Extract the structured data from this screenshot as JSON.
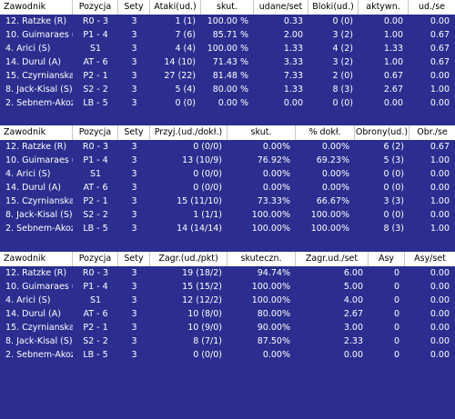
{
  "tables": [
    {
      "headers": [
        "Zawodnik",
        "Pozycja",
        "Sety",
        "Ataki(ud.)",
        "skut.",
        "udane/set",
        "Bloki(ud.)",
        "aktywn.",
        "ud./se"
      ],
      "rows": [
        [
          "12. Ratzke (R)",
          "R0 - 3",
          "3",
          "1 (1)",
          "100.00 %",
          "0.33",
          "0 (0)",
          "0.00",
          "0.00"
        ],
        [
          "10. Guimaraes (P)",
          "P1 - 4",
          "3",
          "7 (6)",
          "85.71 %",
          "2.00",
          "3 (2)",
          "1.00",
          "0.67"
        ],
        [
          "4. Arici (S)",
          "S1",
          "3",
          "4 (4)",
          "100.00 %",
          "1.33",
          "4 (2)",
          "1.33",
          "0.67"
        ],
        [
          "14. Durul (A)",
          "AT - 6",
          "3",
          "14 (10)",
          "71.43 %",
          "3.33",
          "3 (2)",
          "1.00",
          "0.67"
        ],
        [
          "15. Czyrnianska (P)",
          "P2 - 1",
          "3",
          "27 (22)",
          "81.48 %",
          "7.33",
          "2 (0)",
          "0.67",
          "0.00"
        ],
        [
          "8. Jack-Kisal (S)",
          "S2 - 2",
          "3",
          "5 (4)",
          "80.00 %",
          "1.33",
          "8 (3)",
          "2.67",
          "1.00"
        ],
        [
          "2. Sebnem-Akoz (L)",
          "LB - 5",
          "3",
          "0 (0)",
          "0.00 %",
          "0.00",
          "0 (0)",
          "0.00",
          "0.00"
        ]
      ]
    },
    {
      "headers": [
        "Zawodnik",
        "Pozycja",
        "Sety",
        "Przyj.(ud./dokł.)",
        "skut.",
        "% dokł.",
        "Obrony(ud.)",
        "Obr./se"
      ],
      "rows": [
        [
          "12. Ratzke (R)",
          "R0 - 3",
          "3",
          "0 (0/0)",
          "0.00%",
          "0.00%",
          "6 (2)",
          "0.67"
        ],
        [
          "10. Guimaraes (P)",
          "P1 - 4",
          "3",
          "13 (10/9)",
          "76.92%",
          "69.23%",
          "5 (3)",
          "1.00"
        ],
        [
          "4. Arici (S)",
          "S1",
          "3",
          "0 (0/0)",
          "0.00%",
          "0.00%",
          "0 (0)",
          "0.00"
        ],
        [
          "14. Durul (A)",
          "AT - 6",
          "3",
          "0 (0/0)",
          "0.00%",
          "0.00%",
          "0 (0)",
          "0.00"
        ],
        [
          "15. Czyrnianska (P)",
          "P2 - 1",
          "3",
          "15 (11/10)",
          "73.33%",
          "66.67%",
          "3 (3)",
          "1.00"
        ],
        [
          "8. Jack-Kisal (S)",
          "S2 - 2",
          "3",
          "1 (1/1)",
          "100.00%",
          "100.00%",
          "0 (0)",
          "0.00"
        ],
        [
          "2. Sebnem-Akoz (L)",
          "LB - 5",
          "3",
          "14 (14/14)",
          "100.00%",
          "100.00%",
          "8 (3)",
          "1.00"
        ]
      ]
    },
    {
      "headers": [
        "Zawodnik",
        "Pozycja",
        "Sety",
        "Zagr.(ud./pkt)",
        "skuteczn.",
        "Zagr.ud./set",
        "Asy",
        "Asy/set"
      ],
      "rows": [
        [
          "12. Ratzke (R)",
          "R0 - 3",
          "3",
          "19 (18/2)",
          "94.74%",
          "6.00",
          "0",
          "0.00"
        ],
        [
          "10. Guimaraes (P)",
          "P1 - 4",
          "3",
          "15 (15/2)",
          "100.00%",
          "5.00",
          "0",
          "0.00"
        ],
        [
          "4. Arici (S)",
          "S1",
          "3",
          "12 (12/2)",
          "100.00%",
          "4.00",
          "0",
          "0.00"
        ],
        [
          "14. Durul (A)",
          "AT - 6",
          "3",
          "10 (8/0)",
          "80.00%",
          "2.67",
          "0",
          "0.00"
        ],
        [
          "15. Czyrnianska (P)",
          "P2 - 1",
          "3",
          "10 (9/0)",
          "90.00%",
          "3.00",
          "0",
          "0.00"
        ],
        [
          "8. Jack-Kisal (S)",
          "S2 - 2",
          "3",
          "8 (7/1)",
          "87.50%",
          "2.33",
          "0",
          "0.00"
        ],
        [
          "2. Sebnem-Akoz (L)",
          "LB - 5",
          "3",
          "0 (0/0)",
          "0.00%",
          "0.00",
          "0",
          "0.00"
        ]
      ]
    }
  ]
}
